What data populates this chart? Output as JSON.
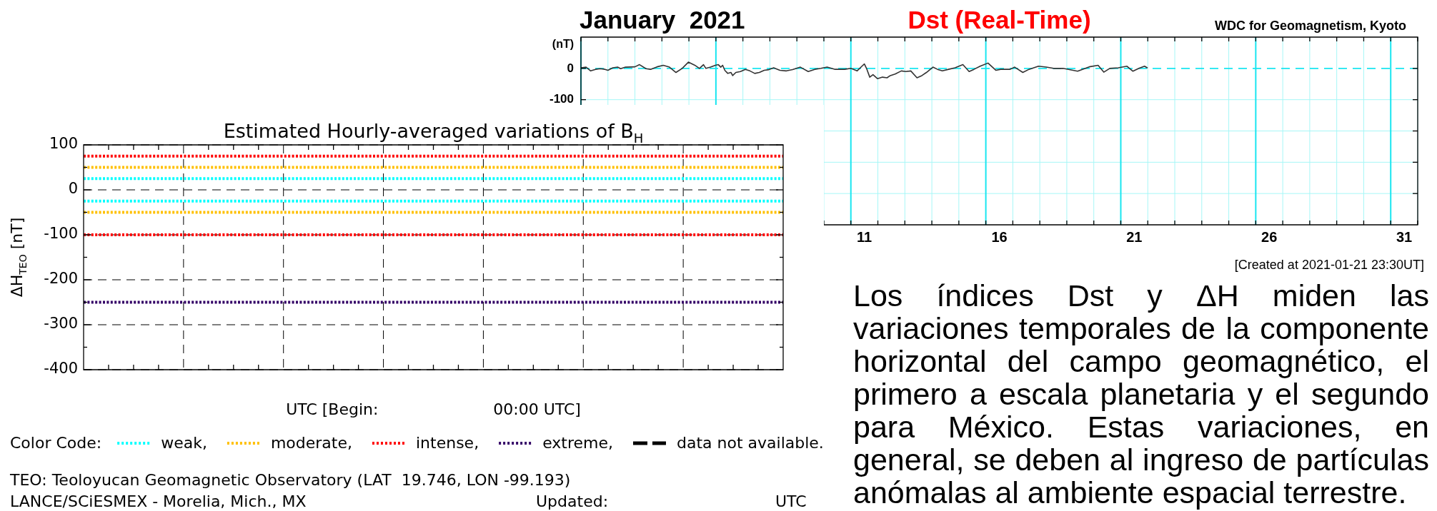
{
  "chart_data": [
    {
      "type": "line",
      "title": "Estimated Hourly-averaged variations of B$_{H}$",
      "xlabel": "UTC [Begin:                       00:00 UTC]",
      "ylabel": "ΔH$_{TEO}$ [nT]",
      "legend_title": "Color Code:",
      "legend": "bottom",
      "categories": [
        null,
        null,
        null,
        null,
        null,
        null,
        null
      ],
      "series": [
        {
          "name": "data not available.",
          "color": "#000000",
          "line_style": "dashed",
          "values": [
            null,
            null,
            null,
            null,
            null,
            null,
            null
          ]
        }
      ],
      "ylim": [
        -400,
        100
      ],
      "yticks": [
        -400,
        {
          "value": -350,
          "label": null
        },
        -300,
        {
          "value": -250,
          "label": null
        },
        -200,
        {
          "value": -150,
          "label": null
        },
        -100,
        {
          "value": -50,
          "label": null
        },
        0,
        {
          "value": 50,
          "label": null
        },
        100
      ],
      "grid": true,
      "ref_lines": [
        {
          "axis": "y",
          "value": 25,
          "label": "weak,",
          "color": "#00ffff",
          "line_style": "dotted"
        },
        {
          "axis": "y",
          "value": 50,
          "label": "moderate,",
          "color": "#ffc000",
          "line_style": "dotted"
        },
        {
          "axis": "y",
          "value": 75,
          "label": "intense,",
          "color": "#ff0000",
          "line_style": "dotted"
        },
        {
          "axis": "y",
          "value": -250,
          "label": "extreme,",
          "color": "#330066",
          "line_style": "dotted"
        },
        {
          "axis": "y",
          "value": -25,
          "color": "#00ffff",
          "line_style": "dotted"
        },
        {
          "axis": "y",
          "value": -50,
          "color": "#ffc000",
          "line_style": "dotted"
        },
        {
          "axis": "y",
          "value": -100,
          "color": "#ff0000",
          "line_style": "dotted"
        }
      ],
      "annotations": [
        "TEO: Teoloyucan Geomagnetic Observatory (LAT  19.746, LON -99.193)",
        "LANCE/SCiESMEX - Morelia, Mich., MX",
        "Updated:",
        "UTC"
      ]
    },
    {
      "type": "line",
      "title": "Dst (Real-Time)",
      "subtitle": "January  2021",
      "ylabel": "(nT)",
      "annotations": [
        "WDC for Geomagnetism, Kyoto",
        "[Created at 2021-01-21 23:30UT]"
      ],
      "x": [
        1.0,
        1.19,
        1.36,
        1.54,
        1.71,
        1.89,
        2.0,
        2.18,
        2.36,
        2.47,
        2.65,
        3.0,
        3.17,
        3.41,
        3.58,
        3.82,
        4.05,
        4.28,
        4.52,
        4.75,
        4.98,
        5.22,
        5.39,
        5.54,
        5.63,
        5.8,
        5.98,
        6.09,
        6.18,
        6.25,
        6.33,
        6.44,
        6.56,
        6.62,
        6.74,
        6.91,
        7.09,
        7.26,
        7.44,
        7.61,
        7.79,
        7.96,
        8.14,
        8.37,
        8.61,
        8.84,
        9.13,
        9.42,
        9.66,
        9.89,
        10.12,
        10.42,
        10.77,
        11.0,
        11.23,
        11.41,
        11.5,
        11.58,
        11.7,
        11.82,
        11.99,
        12.17,
        12.34,
        12.46,
        12.64,
        12.87,
        13.04,
        13.22,
        13.45,
        13.63,
        13.8,
        14.04,
        14.21,
        14.39,
        14.62,
        14.86,
        15.15,
        15.38,
        15.56,
        15.79,
        16.08,
        16.37,
        16.55,
        16.9,
        17.07,
        17.37,
        17.6,
        17.95,
        18.24,
        18.51,
        18.86,
        19.4,
        19.83,
        20.16,
        20.37,
        20.59,
        20.91,
        21.23,
        21.45,
        21.67,
        21.88,
        21.98
      ],
      "values": [
        2,
        4,
        -8,
        -3,
        -1,
        -3,
        -6,
        2,
        4,
        -1,
        4,
        5,
        12,
        -1,
        -3,
        5,
        10,
        4,
        -13,
        0,
        20,
        10,
        0,
        12,
        0,
        4,
        10,
        12,
        4,
        10,
        -6,
        -16,
        -13,
        -23,
        -13,
        -10,
        -3,
        -8,
        -16,
        -13,
        -6,
        -4,
        2,
        -6,
        -8,
        -4,
        4,
        -10,
        -3,
        0,
        4,
        -3,
        -3,
        0,
        -8,
        7,
        14,
        0,
        -28,
        -20,
        -33,
        -28,
        -30,
        -23,
        -18,
        -8,
        -10,
        -8,
        -30,
        -23,
        -13,
        4,
        -3,
        -8,
        -3,
        2,
        12,
        -10,
        -3,
        7,
        17,
        -6,
        -3,
        -3,
        4,
        -13,
        -3,
        7,
        4,
        0,
        0,
        -9,
        5,
        10,
        -12,
        0,
        2,
        7,
        -9,
        0,
        7,
        2
      ],
      "color": "#333333",
      "xlim": [
        1,
        32
      ],
      "xticks": [
        {
          "value": 1,
          "label": null
        },
        {
          "value": 2,
          "label": null
        },
        {
          "value": 3,
          "label": null
        },
        {
          "value": 4,
          "label": null
        },
        {
          "value": 5,
          "label": null
        },
        {
          "value": 6,
          "label": null
        },
        {
          "value": 7,
          "label": null
        },
        {
          "value": 8,
          "label": null
        },
        {
          "value": 9,
          "label": null
        },
        {
          "value": 10,
          "label": null
        },
        {
          "value": 11,
          "label": null
        },
        {
          "value": 12,
          "label": null
        },
        {
          "value": 13,
          "label": null
        },
        {
          "value": 14,
          "label": null
        },
        {
          "value": 15,
          "label": null
        },
        {
          "value": 16,
          "label": null
        },
        {
          "value": 17,
          "label": null
        },
        {
          "value": 18,
          "label": null
        },
        {
          "value": 19,
          "label": null
        },
        {
          "value": 20,
          "label": null
        },
        {
          "value": 21,
          "label": null
        },
        {
          "value": 22,
          "label": null
        },
        {
          "value": 23,
          "label": null
        },
        {
          "value": 24,
          "label": null
        },
        {
          "value": 25,
          "label": null
        },
        {
          "value": 26,
          "label": null
        },
        {
          "value": 27,
          "label": null
        },
        {
          "value": 28,
          "label": null
        },
        {
          "value": 29,
          "label": null
        },
        {
          "value": 30,
          "label": null
        },
        {
          "value": 31,
          "label": null
        },
        {
          "value": 32,
          "label": null
        },
        {
          "value": 11.5,
          "label": "11"
        },
        {
          "value": 16.5,
          "label": "16"
        },
        {
          "value": 21.5,
          "label": "21"
        },
        {
          "value": 26.5,
          "label": "26"
        },
        {
          "value": 31.5,
          "label": "31"
        }
      ],
      "ylim": [
        -500,
        100
      ],
      "yticks": [
        0,
        -100,
        {
          "value": -200,
          "label": null
        },
        {
          "value": -300,
          "label": null
        },
        {
          "value": -400,
          "label": null
        }
      ],
      "grid": true,
      "ref_lines": [
        {
          "axis": "y",
          "value": 0,
          "color": "#19e6f0",
          "line_style": "dashed"
        }
      ]
    },
    {
      "type": "other",
      "annotations": [
        "Los índices Dst y ΔH miden las variaciones temporales de la componente horizontal del campo geomagnético, el primero a escala planetaria y el segundo para México. Estas variaciones, en general, se deben al ingreso de partículas anómalas al ambiente espacial terrestre."
      ]
    }
  ]
}
